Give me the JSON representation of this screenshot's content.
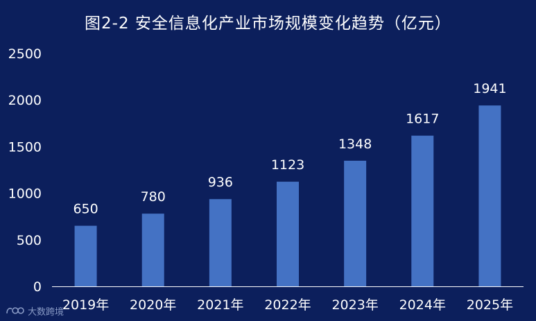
{
  "title": "图2-2 安全信息化产业市场规模变化趋势（亿元）",
  "watermark_text": "大数跨境",
  "colors": {
    "background": "#0c1f5c",
    "bar": "#4472c4",
    "text": "#ffffff",
    "axis": "#ffffff"
  },
  "chart_data": {
    "type": "bar",
    "title": "图2-2 安全信息化产业市场规模变化趋势（亿元）",
    "categories": [
      "2019年",
      "2020年",
      "2021年",
      "2022年",
      "2023年",
      "2024年",
      "2025年"
    ],
    "values": [
      650,
      780,
      936,
      1123,
      1348,
      1617,
      1941
    ],
    "yticks": [
      0,
      500,
      1000,
      1500,
      2000,
      2500
    ],
    "ylim": [
      0,
      2500
    ],
    "xlabel": "",
    "ylabel": "",
    "grid": false,
    "legend": "none"
  }
}
